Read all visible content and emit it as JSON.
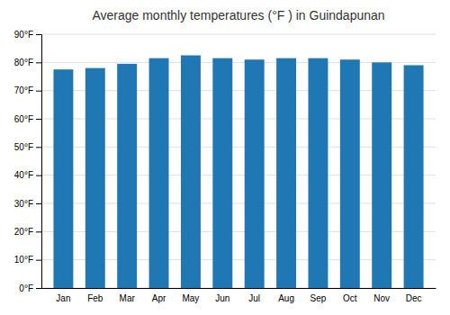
{
  "chart_data": {
    "type": "bar",
    "title": "Average monthly temperatures (°F ) in Guindapunan",
    "categories": [
      "Jan",
      "Feb",
      "Mar",
      "Apr",
      "May",
      "Jun",
      "Jul",
      "Aug",
      "Sep",
      "Oct",
      "Nov",
      "Dec"
    ],
    "values": [
      77.5,
      78.0,
      79.5,
      81.5,
      82.5,
      81.5,
      81.0,
      81.5,
      81.5,
      81.0,
      80.0,
      79.0
    ],
    "ylim": [
      0,
      90
    ],
    "yticks": [
      {
        "value": 0,
        "label": "0°F"
      },
      {
        "value": 10,
        "label": "10°F"
      },
      {
        "value": 20,
        "label": "20°F"
      },
      {
        "value": 30,
        "label": "30°F"
      },
      {
        "value": 40,
        "label": "40°F"
      },
      {
        "value": 50,
        "label": "50°F"
      },
      {
        "value": 60,
        "label": "60°F"
      },
      {
        "value": 70,
        "label": "70°F"
      },
      {
        "value": 80,
        "label": "80°F"
      },
      {
        "value": 90,
        "label": "90°F"
      }
    ],
    "grid": true
  }
}
